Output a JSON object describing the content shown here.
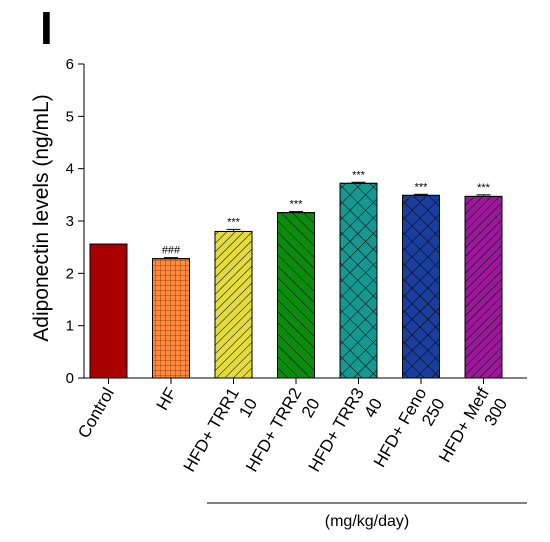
{
  "panel_label": "I",
  "chart_data": {
    "type": "bar",
    "categories": [
      [
        "Control"
      ],
      [
        "HF"
      ],
      [
        "HFD+ TRR1",
        "10"
      ],
      [
        "HFD+ TRR2",
        "20"
      ],
      [
        "HFD+ TRR3",
        "40"
      ],
      [
        "HFD+ Feno",
        "250"
      ],
      [
        "HFD+ Metf",
        "300"
      ]
    ],
    "values": [
      2.56,
      2.28,
      2.8,
      3.16,
      3.72,
      3.49,
      3.47
    ],
    "errors": [
      0.0,
      0.02,
      0.04,
      0.02,
      0.02,
      0.02,
      0.03
    ],
    "significance": [
      "",
      "###",
      "***",
      "***",
      "***",
      "***",
      "***"
    ],
    "colors": [
      "#a80000",
      "#ff8a3d",
      "#e3dc3c",
      "#0c8c0c",
      "#169890",
      "#1a3e9c",
      "#9b189b"
    ],
    "patterns": [
      "solid",
      "grid",
      "diag-right",
      "diag-left",
      "crosshatch",
      "crosshatch",
      "diag-right"
    ],
    "ylabel": "Adiponectin levels (ng/mL)",
    "xlabel": "",
    "ylim": [
      0,
      6
    ],
    "yticks": [
      "0",
      "1",
      "2",
      "3",
      "4",
      "5",
      "6"
    ],
    "group_label": "(mg/kg/day)",
    "grid": false,
    "legend": "none"
  }
}
